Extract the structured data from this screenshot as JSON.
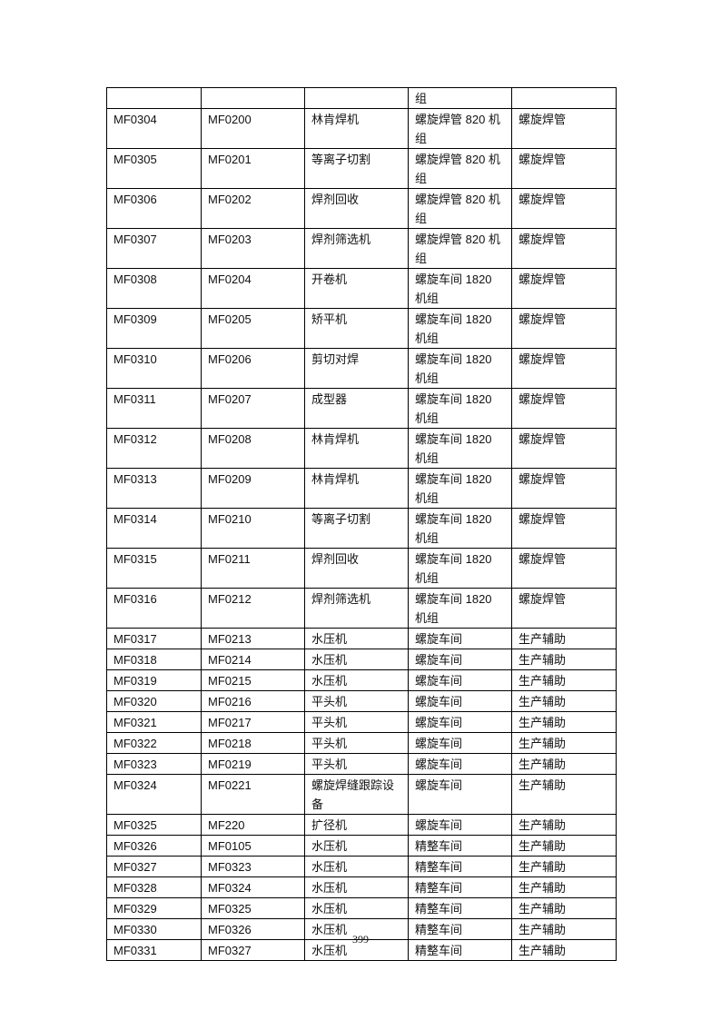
{
  "continued_row": [
    "",
    "",
    "",
    "组",
    ""
  ],
  "rows": [
    [
      "MF0304",
      "MF0200",
      "林肯焊机",
      "螺旋焊管 820 机组",
      "螺旋焊管"
    ],
    [
      "MF0305",
      "MF0201",
      "等离子切割",
      "螺旋焊管 820 机组",
      "螺旋焊管"
    ],
    [
      "MF0306",
      "MF0202",
      "焊剂回收",
      "螺旋焊管 820 机组",
      "螺旋焊管"
    ],
    [
      "MF0307",
      "MF0203",
      "焊剂筛选机",
      "螺旋焊管 820 机组",
      "螺旋焊管"
    ],
    [
      "MF0308",
      "MF0204",
      "开卷机",
      "螺旋车间 1820 机组",
      "螺旋焊管"
    ],
    [
      "MF0309",
      "MF0205",
      "矫平机",
      "螺旋车间 1820 机组",
      "螺旋焊管"
    ],
    [
      "MF0310",
      "MF0206",
      "剪切对焊",
      "螺旋车间 1820 机组",
      "螺旋焊管"
    ],
    [
      "MF0311",
      "MF0207",
      "成型器",
      "螺旋车间 1820 机组",
      "螺旋焊管"
    ],
    [
      "MF0312",
      "MF0208",
      "林肯焊机",
      "螺旋车间 1820 机组",
      "螺旋焊管"
    ],
    [
      "MF0313",
      "MF0209",
      "林肯焊机",
      "螺旋车间 1820 机组",
      "螺旋焊管"
    ],
    [
      "MF0314",
      "MF0210",
      "等离子切割",
      "螺旋车间 1820 机组",
      "螺旋焊管"
    ],
    [
      "MF0315",
      "MF0211",
      "焊剂回收",
      "螺旋车间 1820 机组",
      "螺旋焊管"
    ],
    [
      "MF0316",
      "MF0212",
      "焊剂筛选机",
      "螺旋车间 1820 机组",
      "螺旋焊管"
    ],
    [
      "MF0317",
      "MF0213",
      "水压机",
      "螺旋车间",
      "生产辅助"
    ],
    [
      "MF0318",
      "MF0214",
      "水压机",
      "螺旋车间",
      "生产辅助"
    ],
    [
      "MF0319",
      "MF0215",
      "水压机",
      "螺旋车间",
      "生产辅助"
    ],
    [
      "MF0320",
      "MF0216",
      "平头机",
      "螺旋车间",
      "生产辅助"
    ],
    [
      "MF0321",
      "MF0217",
      "平头机",
      "螺旋车间",
      "生产辅助"
    ],
    [
      "MF0322",
      "MF0218",
      "平头机",
      "螺旋车间",
      "生产辅助"
    ],
    [
      "MF0323",
      "MF0219",
      "平头机",
      "螺旋车间",
      "生产辅助"
    ],
    [
      "MF0324",
      "MF0221",
      "螺旋焊缝跟踪设备",
      "螺旋车间",
      "生产辅助"
    ],
    [
      "MF0325",
      "MF220",
      "扩径机",
      "螺旋车间",
      "生产辅助"
    ],
    [
      "MF0326",
      "MF0105",
      "水压机",
      "精整车间",
      "生产辅助"
    ],
    [
      "MF0327",
      "MF0323",
      "水压机",
      "精整车间",
      "生产辅助"
    ],
    [
      "MF0328",
      "MF0324",
      "水压机",
      "精整车间",
      "生产辅助"
    ],
    [
      "MF0329",
      "MF0325",
      "水压机",
      "精整车间",
      "生产辅助"
    ],
    [
      "MF0330",
      "MF0326",
      "水压机",
      "精整车间",
      "生产辅助"
    ],
    [
      "MF0331",
      "MF0327",
      "水压机",
      "精整车间",
      "生产辅助"
    ]
  ],
  "page_number": "399"
}
